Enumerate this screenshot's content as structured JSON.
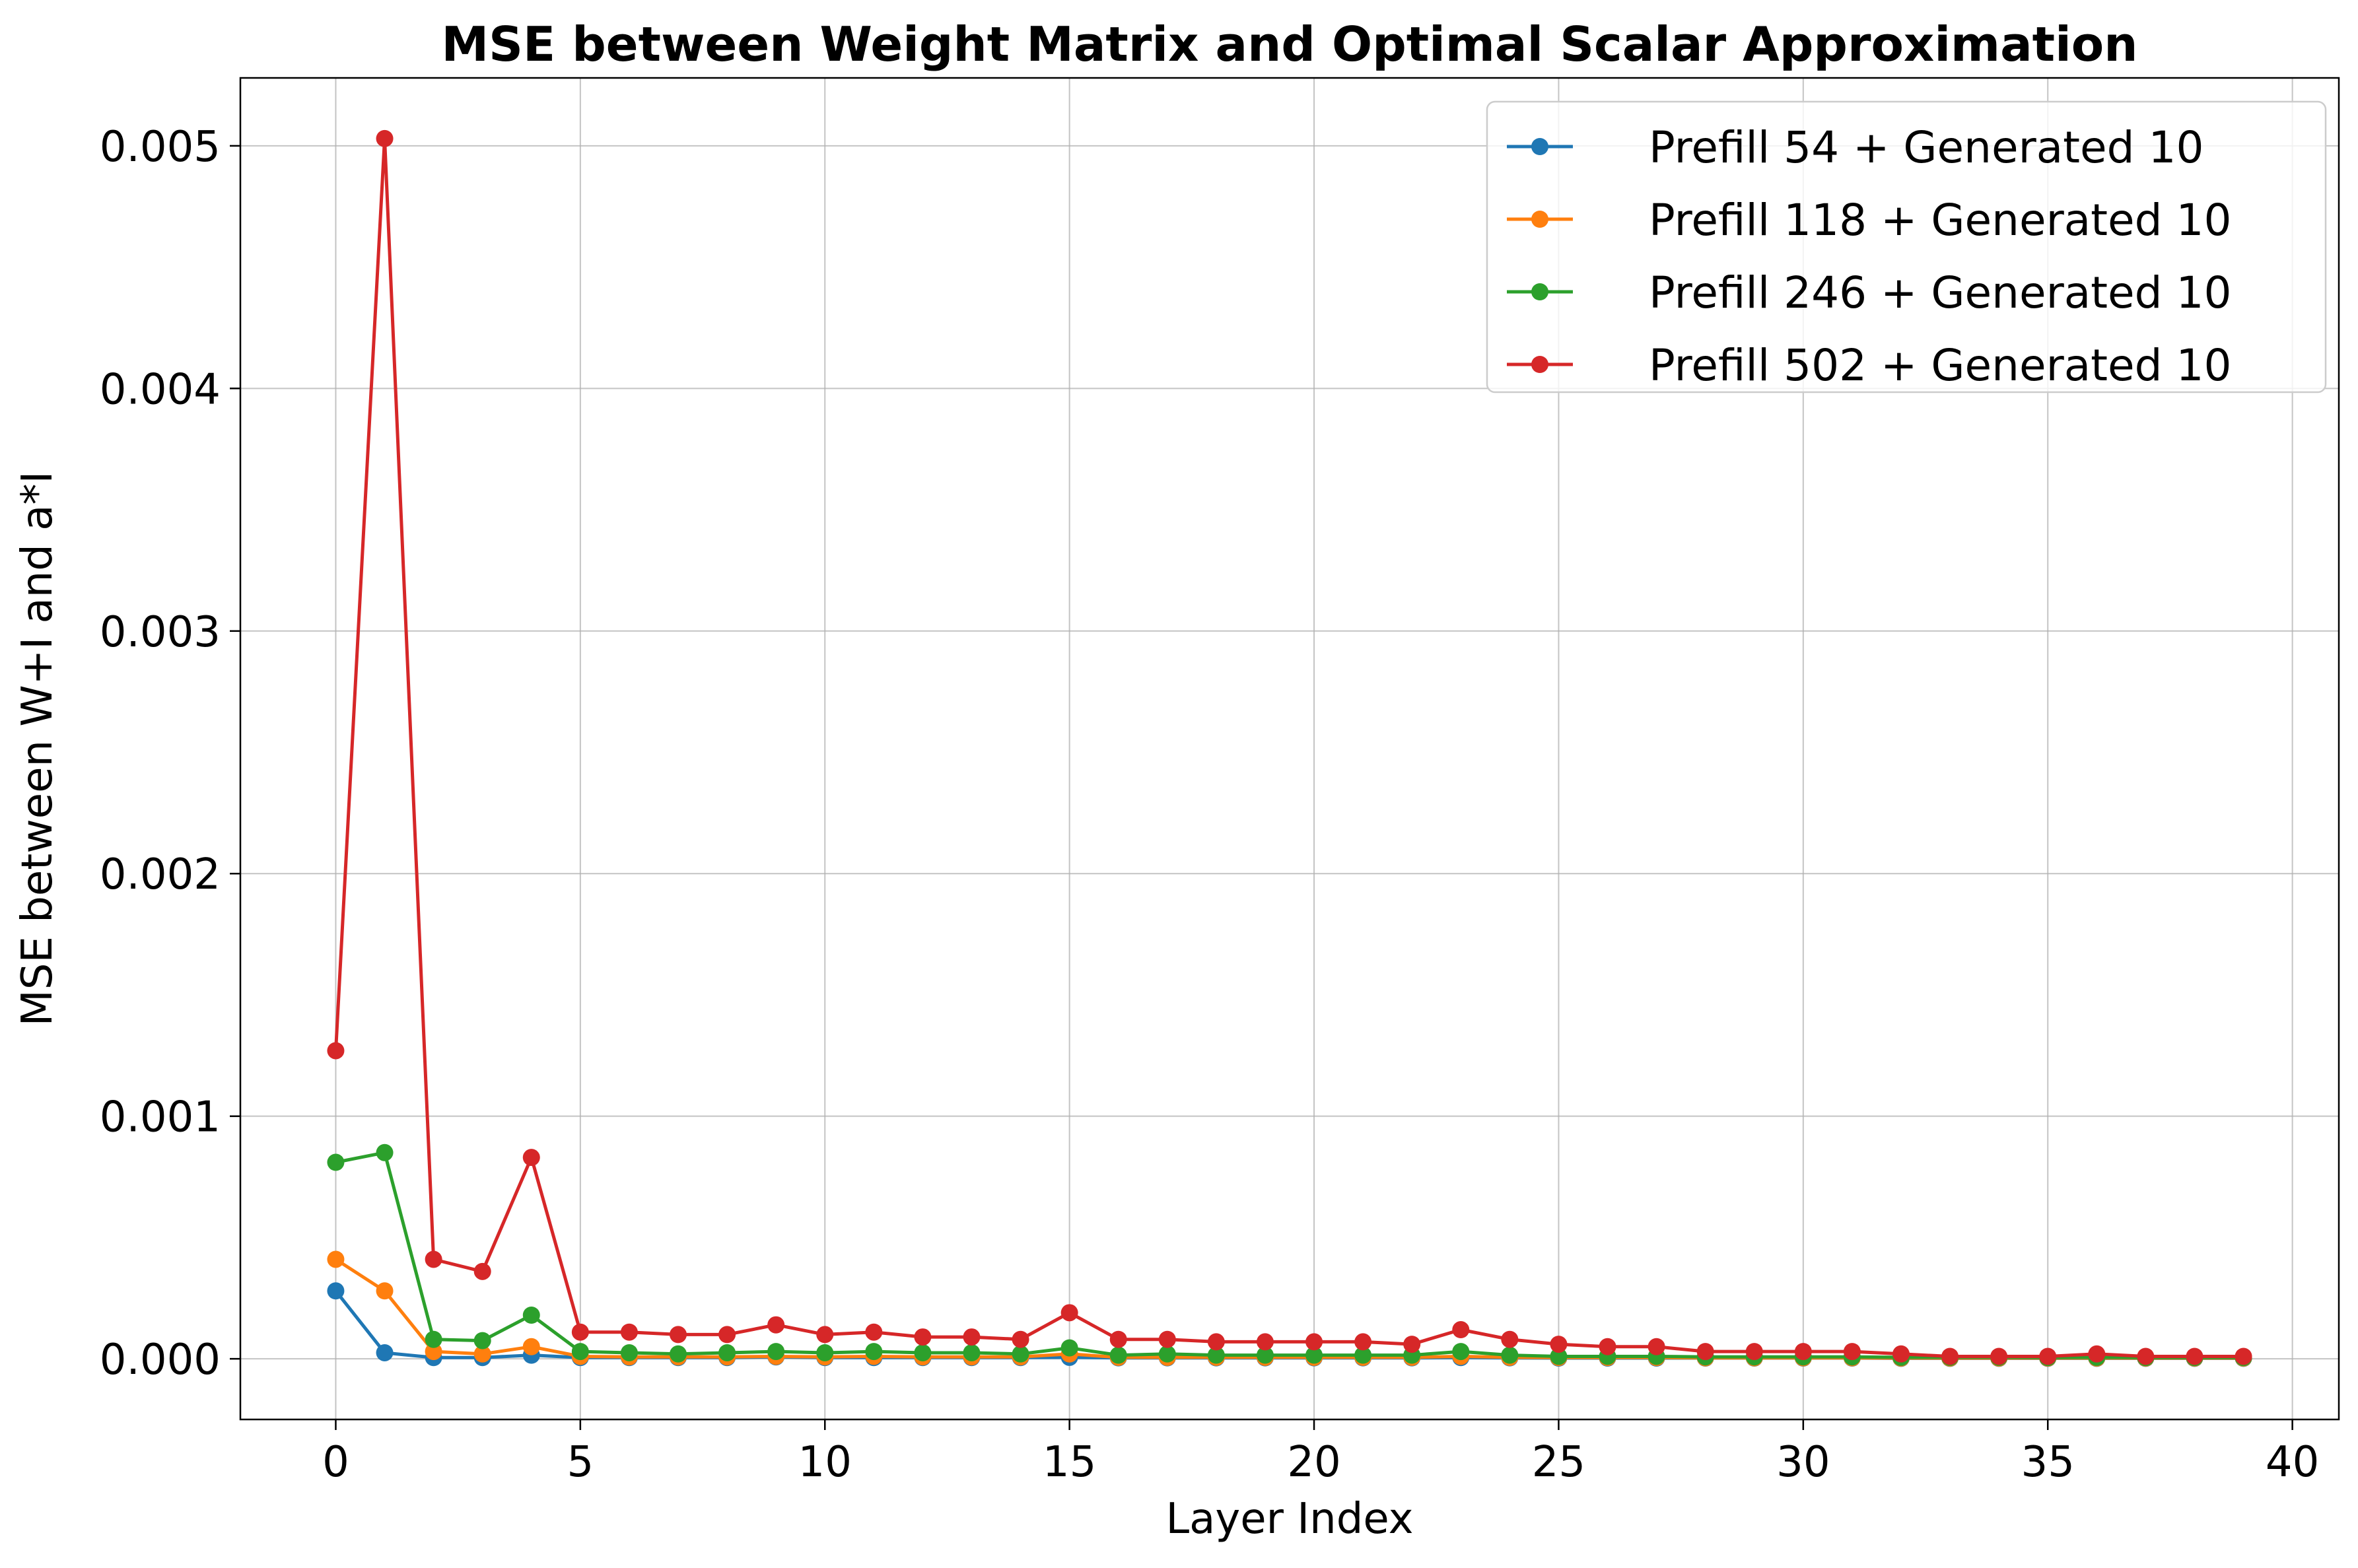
{
  "chart_data": {
    "type": "line",
    "title": "MSE between Weight Matrix and Optimal Scalar Approximation",
    "xlabel": "Layer Index",
    "ylabel": "MSE between W+I and a*I",
    "xlim": [
      -1.95,
      40.95
    ],
    "ylim": [
      -0.00025,
      0.00528
    ],
    "xticks": [
      0,
      5,
      10,
      15,
      20,
      25,
      30,
      35,
      40
    ],
    "xtick_labels": [
      "0",
      "5",
      "10",
      "15",
      "20",
      "25",
      "30",
      "35",
      "40"
    ],
    "yticks": [
      0.0,
      0.001,
      0.002,
      0.003,
      0.004,
      0.005
    ],
    "ytick_labels": [
      "0.000",
      "0.001",
      "0.002",
      "0.003",
      "0.004",
      "0.005"
    ],
    "grid": true,
    "legend_position": "top-right",
    "x": [
      0,
      1,
      2,
      3,
      4,
      5,
      6,
      7,
      8,
      9,
      10,
      11,
      12,
      13,
      14,
      15,
      16,
      17,
      18,
      19,
      20,
      21,
      22,
      23,
      24,
      25,
      26,
      27,
      28,
      29,
      30,
      31,
      32,
      33,
      34,
      35,
      36,
      37,
      38,
      39
    ],
    "series": [
      {
        "name": "Prefill 54 + Generated 10",
        "color": "#1f77b4",
        "values": [
          0.00028,
          2.5e-05,
          5e-06,
          5e-06,
          1.5e-05,
          5e-06,
          5e-06,
          5e-06,
          5e-06,
          8e-06,
          5e-06,
          5e-06,
          5e-06,
          5e-06,
          5e-06,
          6e-06,
          4e-06,
          4e-06,
          4e-06,
          4e-06,
          4e-06,
          4e-06,
          4e-06,
          5e-06,
          4e-06,
          3e-06,
          3e-06,
          3e-06,
          3e-06,
          3e-06,
          3e-06,
          3e-06,
          2e-06,
          2e-06,
          2e-06,
          2e-06,
          2e-06,
          2e-06,
          2e-06,
          2e-06
        ]
      },
      {
        "name": "Prefill 118 + Generated 10",
        "color": "#ff7f0e",
        "values": [
          0.00041,
          0.00028,
          3e-05,
          2e-05,
          5e-05,
          1e-05,
          8e-06,
          8e-06,
          8e-06,
          1e-05,
          8e-06,
          1e-05,
          8e-06,
          8e-06,
          8e-06,
          2e-05,
          6e-06,
          6e-06,
          6e-06,
          6e-06,
          6e-06,
          6e-06,
          6e-06,
          1e-05,
          6e-06,
          5e-06,
          5e-06,
          5e-06,
          4e-06,
          4e-06,
          4e-06,
          4e-06,
          3e-06,
          3e-06,
          3e-06,
          3e-06,
          3e-06,
          3e-06,
          3e-06,
          3e-06
        ]
      },
      {
        "name": "Prefill 246 + Generated 10",
        "color": "#2ca02c",
        "values": [
          0.00081,
          0.00085,
          8e-05,
          7.5e-05,
          0.00018,
          3e-05,
          2.5e-05,
          2e-05,
          2.5e-05,
          3e-05,
          2.5e-05,
          3e-05,
          2.5e-05,
          2.5e-05,
          2e-05,
          4.5e-05,
          1.5e-05,
          2e-05,
          1.5e-05,
          1.5e-05,
          1.5e-05,
          1.5e-05,
          1.5e-05,
          3e-05,
          1.5e-05,
          1e-05,
          1e-05,
          1e-05,
          8e-06,
          8e-06,
          8e-06,
          8e-06,
          6e-06,
          6e-06,
          6e-06,
          5e-06,
          6e-06,
          5e-06,
          5e-06,
          5e-06
        ]
      },
      {
        "name": "Prefill 502 + Generated 10",
        "color": "#d62728",
        "values": [
          0.00127,
          0.00503,
          0.00041,
          0.00036,
          0.00083,
          0.00011,
          0.00011,
          0.0001,
          0.0001,
          0.00014,
          0.0001,
          0.00011,
          9e-05,
          9e-05,
          8e-05,
          0.00019,
          8e-05,
          8e-05,
          7e-05,
          7e-05,
          7e-05,
          7e-05,
          6e-05,
          0.00012,
          8e-05,
          6e-05,
          5e-05,
          5e-05,
          3e-05,
          3e-05,
          3e-05,
          3e-05,
          2e-05,
          1e-05,
          1e-05,
          1e-05,
          2e-05,
          1e-05,
          1e-05,
          1e-05
        ]
      }
    ]
  }
}
